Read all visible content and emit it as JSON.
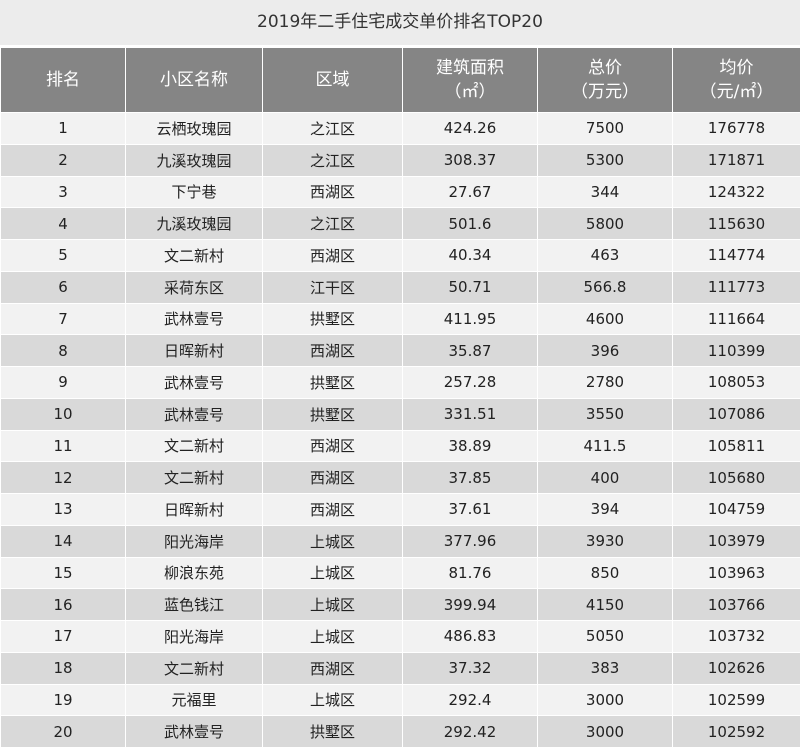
{
  "title": "2019年二手住宅成交单价排名TOP20",
  "table": {
    "columns": [
      {
        "label": "排名"
      },
      {
        "label": "小区名称"
      },
      {
        "label": "区域"
      },
      {
        "label": "建筑面积",
        "unit": "（㎡）"
      },
      {
        "label": "总价",
        "unit": "（万元）"
      },
      {
        "label": "均价",
        "unit": "（元/㎡）"
      }
    ],
    "rows": [
      [
        1,
        "云栖玫瑰园",
        "之江区",
        424.26,
        7500,
        176778
      ],
      [
        2,
        "九溪玫瑰园",
        "之江区",
        308.37,
        5300,
        171871
      ],
      [
        3,
        "下宁巷",
        "西湖区",
        27.67,
        344,
        124322
      ],
      [
        4,
        "九溪玫瑰园",
        "之江区",
        501.6,
        5800,
        115630
      ],
      [
        5,
        "文二新村",
        "西湖区",
        40.34,
        463,
        114774
      ],
      [
        6,
        "采荷东区",
        "江干区",
        50.71,
        566.8,
        111773
      ],
      [
        7,
        "武林壹号",
        "拱墅区",
        411.95,
        4600,
        111664
      ],
      [
        8,
        "日晖新村",
        "西湖区",
        35.87,
        396,
        110399
      ],
      [
        9,
        "武林壹号",
        "拱墅区",
        257.28,
        2780,
        108053
      ],
      [
        10,
        "武林壹号",
        "拱墅区",
        331.51,
        3550,
        107086
      ],
      [
        11,
        "文二新村",
        "西湖区",
        38.89,
        411.5,
        105811
      ],
      [
        12,
        "文二新村",
        "西湖区",
        37.85,
        400,
        105680
      ],
      [
        13,
        "日晖新村",
        "西湖区",
        37.61,
        394,
        104759
      ],
      [
        14,
        "阳光海岸",
        "上城区",
        377.96,
        3930,
        103979
      ],
      [
        15,
        "柳浪东苑",
        "上城区",
        81.76,
        850,
        103963
      ],
      [
        16,
        "蓝色钱江",
        "上城区",
        399.94,
        4150,
        103766
      ],
      [
        17,
        "阳光海岸",
        "上城区",
        486.83,
        5050,
        103732
      ],
      [
        18,
        "文二新村",
        "西湖区",
        37.32,
        383,
        102626
      ],
      [
        19,
        "元福里",
        "上城区",
        292.4,
        3000,
        102599
      ],
      [
        20,
        "武林壹号",
        "拱墅区",
        292.42,
        3000,
        102592
      ]
    ]
  }
}
